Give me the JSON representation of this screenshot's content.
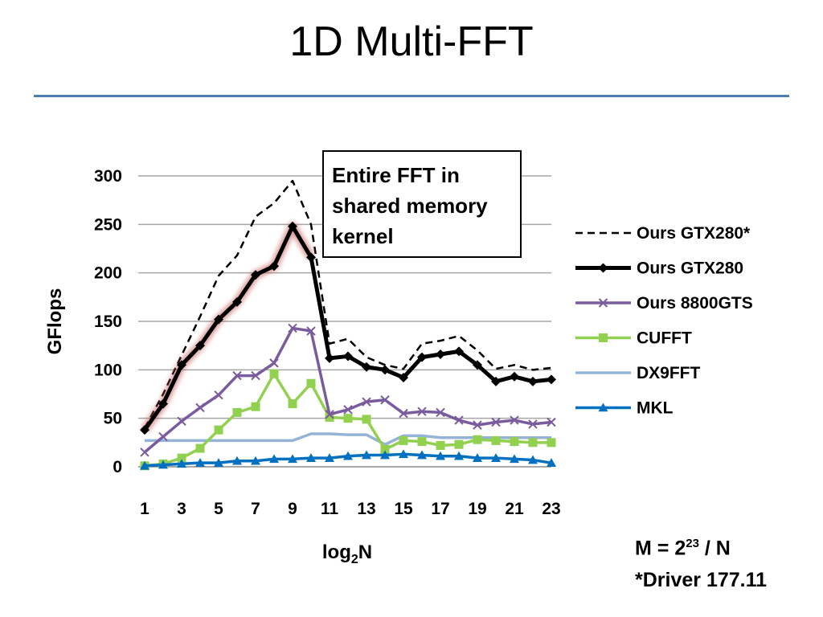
{
  "title": "1D Multi-FFT",
  "annotation": [
    "Entire FFT in",
    "shared memory",
    "kernel"
  ],
  "footnotes": {
    "m_prefix": "M = 2",
    "m_exp": "23",
    "m_suffix": " / N",
    "driver": "*Driver 177.11"
  },
  "chart_data": {
    "type": "line",
    "title": "",
    "xlabel_base": "log",
    "xlabel_sub": "2",
    "xlabel_tail": "N",
    "ylabel": "GFlops",
    "x": [
      1,
      2,
      3,
      4,
      5,
      6,
      7,
      8,
      9,
      10,
      11,
      12,
      13,
      14,
      15,
      16,
      17,
      18,
      19,
      20,
      21,
      22,
      23
    ],
    "x_tick_labels": [
      "1",
      "3",
      "5",
      "7",
      "9",
      "11",
      "13",
      "15",
      "17",
      "19",
      "21",
      "23"
    ],
    "y_ticks": [
      0,
      50,
      100,
      150,
      200,
      250,
      300
    ],
    "ylim": [
      0,
      300
    ],
    "grid": true,
    "legend_position": "right",
    "series": [
      {
        "name": "Ours GTX280*",
        "color": "#000000",
        "style": "dashed",
        "marker": "none",
        "values": [
          40,
          75,
          115,
          155,
          197,
          218,
          258,
          272,
          295,
          250,
          127,
          132,
          113,
          105,
          101,
          127,
          130,
          135,
          120,
          101,
          105,
          100,
          102
        ]
      },
      {
        "name": "Ours GTX280",
        "color": "#000000",
        "style": "solid-thick",
        "marker": "diamond",
        "values": [
          38,
          65,
          105,
          125,
          152,
          170,
          198,
          207,
          248,
          216,
          112,
          114,
          103,
          100,
          92,
          113,
          116,
          119,
          105,
          88,
          93,
          88,
          90
        ]
      },
      {
        "name": "Ours 8800GTS",
        "color": "#7a5c9e",
        "style": "solid",
        "marker": "x",
        "values": [
          15,
          31,
          47,
          61,
          74,
          94,
          94,
          107,
          143,
          140,
          54,
          59,
          67,
          69,
          55,
          57,
          56,
          48,
          43,
          46,
          48,
          44,
          46
        ]
      },
      {
        "name": "CUFFT",
        "color": "#92d050",
        "style": "solid",
        "marker": "square",
        "values": [
          1,
          3,
          9,
          19,
          38,
          56,
          62,
          96,
          65,
          86,
          51,
          50,
          49,
          18,
          27,
          26,
          22,
          23,
          28,
          27,
          26,
          25,
          25
        ]
      },
      {
        "name": "DX9FFT",
        "color": "#95b3d7",
        "style": "solid",
        "marker": "none",
        "values": [
          27,
          27,
          27,
          27,
          27,
          27,
          27,
          27,
          27,
          34,
          34,
          33,
          33,
          23,
          32,
          32,
          30,
          30,
          30,
          30,
          30,
          30,
          30
        ]
      },
      {
        "name": "MKL",
        "color": "#0070c0",
        "style": "solid",
        "marker": "triangle",
        "values": [
          1,
          2,
          3,
          4,
          4,
          6,
          6,
          8,
          8,
          9,
          9,
          11,
          12,
          12,
          13,
          12,
          11,
          11,
          9,
          9,
          8,
          7,
          4
        ]
      }
    ]
  }
}
